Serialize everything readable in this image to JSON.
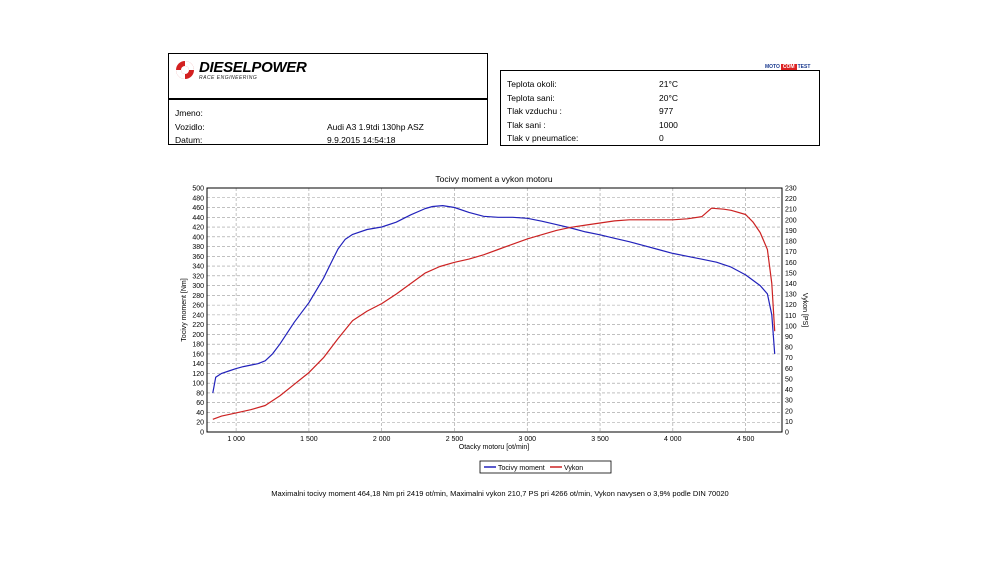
{
  "brand": {
    "name": "DIESELPOWER",
    "subtitle": "RACE ENGINEERING",
    "badge": [
      "MOTO",
      "COM",
      "TEST"
    ]
  },
  "vehicle": {
    "fields": [
      {
        "label": "Jmeno:",
        "value": ""
      },
      {
        "label": "Vozidlo:",
        "value": "Audi A3 1.9tdi 130hp ASZ"
      },
      {
        "label": "Datum:",
        "value": "9.9.2015 14:54:18"
      }
    ]
  },
  "conditions": {
    "fields": [
      {
        "label": "Teplota okoli:",
        "value": "21°C"
      },
      {
        "label": "Teplota sani:",
        "value": "20°C"
      },
      {
        "label": "Tlak vzduchu :",
        "value": "977"
      },
      {
        "label": "Tlak sani :",
        "value": "1000"
      },
      {
        "label": "Tlak v pneumatice:",
        "value": "0"
      }
    ]
  },
  "chart_data": {
    "type": "line",
    "title": "Tocivy moment a vykon motoru",
    "xlabel": "Otacky motoru [ot/min]",
    "ylabel": "Tocivy moment [Nm]",
    "y2label": "Vykon [PS]",
    "xlim": [
      800,
      4750
    ],
    "ylim": [
      0,
      500
    ],
    "y2lim": [
      0,
      230
    ],
    "xticks": [
      1000,
      1500,
      2000,
      2500,
      3000,
      3500,
      4000,
      4500
    ],
    "xtick_labels": [
      "1 000",
      "1 500",
      "2 000",
      "2 500",
      "3 000",
      "3 500",
      "4 000",
      "4 500"
    ],
    "yticks_step": 20,
    "y2ticks_step": 10,
    "grid": true,
    "legend_position": "bottom",
    "series": [
      {
        "name": "Tocivy moment",
        "axis": "left",
        "color": "#2222bb",
        "x": [
          840,
          860,
          900,
          950,
          1000,
          1050,
          1100,
          1150,
          1200,
          1250,
          1300,
          1400,
          1500,
          1600,
          1650,
          1700,
          1750,
          1800,
          1900,
          2000,
          2100,
          2200,
          2300,
          2350,
          2419,
          2500,
          2600,
          2700,
          2800,
          2900,
          3000,
          3100,
          3200,
          3300,
          3400,
          3500,
          3600,
          3700,
          3800,
          3900,
          4000,
          4100,
          4200,
          4300,
          4400,
          4500,
          4600,
          4650,
          4680,
          4700
        ],
        "y": [
          80,
          112,
          120,
          125,
          130,
          134,
          137,
          140,
          146,
          160,
          180,
          225,
          265,
          315,
          345,
          375,
          395,
          405,
          415,
          420,
          430,
          445,
          458,
          462,
          464,
          460,
          450,
          442,
          440,
          440,
          438,
          432,
          425,
          418,
          410,
          404,
          397,
          390,
          382,
          374,
          366,
          360,
          354,
          348,
          338,
          322,
          300,
          283,
          240,
          160
        ]
      },
      {
        "name": "Vykon",
        "axis": "right",
        "color": "#cc2222",
        "x": [
          840,
          900,
          1000,
          1100,
          1200,
          1300,
          1400,
          1500,
          1600,
          1700,
          1800,
          1900,
          2000,
          2100,
          2200,
          2300,
          2400,
          2500,
          2600,
          2700,
          2800,
          2900,
          3000,
          3100,
          3200,
          3300,
          3400,
          3500,
          3600,
          3700,
          3800,
          3900,
          4000,
          4100,
          4200,
          4266,
          4350,
          4400,
          4500,
          4550,
          4600,
          4650,
          4680,
          4700
        ],
        "y": [
          12,
          15,
          18,
          21,
          25,
          34,
          45,
          56,
          70,
          88,
          105,
          114,
          121,
          130,
          140,
          150,
          156,
          160,
          163,
          167,
          172,
          177,
          182,
          186,
          190,
          193,
          195,
          197,
          199,
          200,
          200,
          200,
          200,
          201,
          203,
          211,
          210,
          209,
          205,
          198,
          188,
          172,
          140,
          95
        ]
      }
    ]
  },
  "footer": {
    "text": "Maximalni tocivy moment 464,18 Nm pri 2419 ot/min,  Maximalni vykon 210,7 PS pri 4266 ot/min,  Vykon navysen o 3,9% podle DIN 70020"
  }
}
